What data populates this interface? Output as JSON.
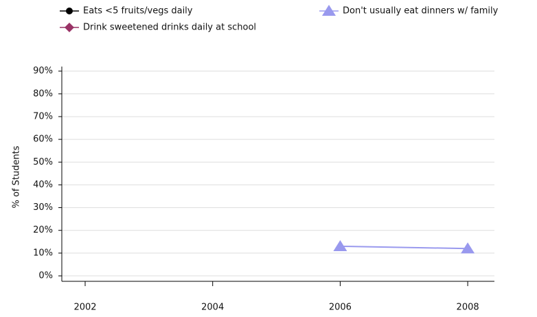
{
  "chart_data": {
    "type": "line",
    "y_label": "% of Students",
    "categories": [
      "2002",
      "2004",
      "2006",
      "2008"
    ],
    "series": [
      {
        "name": "Eats <5 fruits/vegs daily",
        "color": "#000000",
        "marker": "circle",
        "values": [
          null,
          null,
          null,
          null
        ]
      },
      {
        "name": "Drink sweetened drinks daily at school",
        "color": "#993366",
        "marker": "diamond",
        "values": [
          null,
          null,
          null,
          null
        ]
      },
      {
        "name": "Don't usually eat dinners w/ family",
        "color": "#9999ee",
        "marker": "triangle",
        "values": [
          null,
          null,
          13,
          12
        ]
      }
    ],
    "ylim": [
      -2.4,
      92
    ],
    "yticks": [
      {
        "value": 0,
        "label": "0%"
      },
      {
        "value": 10,
        "label": "10%"
      },
      {
        "value": 20,
        "label": "20%"
      },
      {
        "value": 30,
        "label": "30%"
      },
      {
        "value": 40,
        "label": "40%"
      },
      {
        "value": 50,
        "label": "50%"
      },
      {
        "value": 60,
        "label": "60%"
      },
      {
        "value": 70,
        "label": "70%"
      },
      {
        "value": 80,
        "label": "80%"
      },
      {
        "value": 90,
        "label": "90%"
      }
    ],
    "grid": true
  }
}
